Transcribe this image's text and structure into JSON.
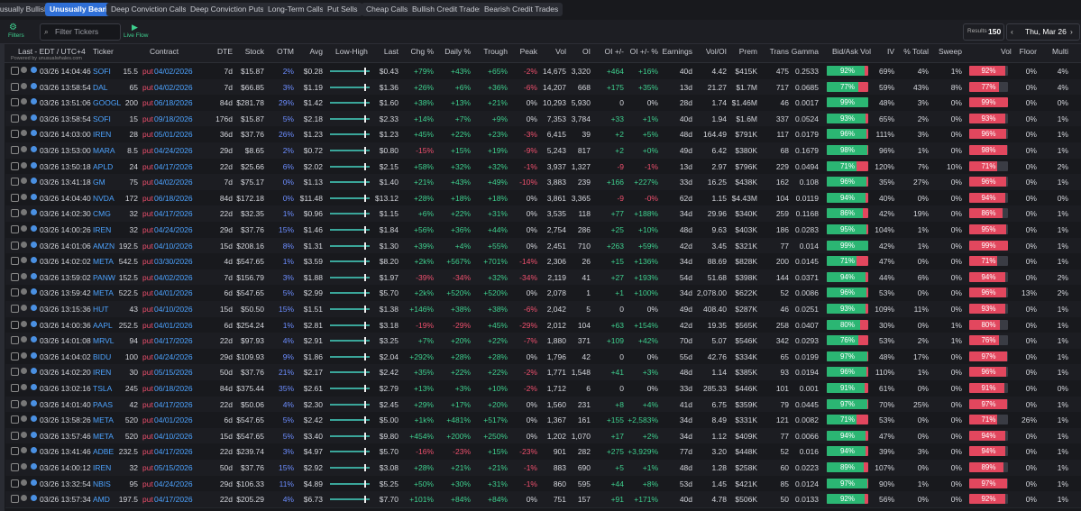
{
  "tabs": [
    "Unusually Bullish",
    "Unusually Bearish",
    "Deep Conviction Calls",
    "Deep Conviction Puts",
    "Long-Term Calls",
    "Put Sells",
    "Cheap Calls",
    "Bullish Credit Trades",
    "Bearish Credit Trades"
  ],
  "toolbar": {
    "filters": "Filters",
    "search_placeholder": "Filter Tickers",
    "live_flow": "Live Flow",
    "results_label": "Results",
    "results_count": "150",
    "date": "Thu, Mar 26"
  },
  "table": {
    "powered_by": "Powered by unusualwhales.com",
    "headers": [
      "Last - EDT / UTC+4",
      "Ticker",
      "Contract",
      "DTE",
      "Stock",
      "OTM",
      "Avg",
      "Low-High",
      "Last",
      "Chg %",
      "Daily %",
      "Trough",
      "Peak",
      "Vol",
      "OI",
      "OI +/-",
      "OI +/- %",
      "Earnings",
      "Vol/OI",
      "Prem",
      "Trans",
      "Gamma",
      "Bid/Ask Vol",
      "IV",
      "% Total",
      "Sweep",
      "Vol",
      "Floor",
      "Multi"
    ],
    "rows": [
      [
        "03/26 14:04:46",
        "SOFI",
        "15.5",
        "put",
        "04/02/2026",
        "7d",
        "$15.87",
        "2%",
        "$0.28",
        "$0.43",
        "+79%",
        "+43%",
        "+65%",
        "-2%",
        "14,675",
        "3,320",
        "+464",
        "+16%",
        "40d",
        "4.42",
        "$415K",
        "475",
        "0.2533",
        "92%",
        "69%",
        "4%",
        "1%",
        "92%",
        "0%",
        "4%"
      ],
      [
        "03/26 13:58:54",
        "DAL",
        "65",
        "put",
        "04/02/2026",
        "7d",
        "$66.85",
        "3%",
        "$1.19",
        "$1.36",
        "+26%",
        "+6%",
        "+36%",
        "-6%",
        "14,207",
        "668",
        "+175",
        "+35%",
        "13d",
        "21.27",
        "$1.7M",
        "717",
        "0.0685",
        "77%",
        "59%",
        "43%",
        "8%",
        "77%",
        "0%",
        "4%"
      ],
      [
        "03/26 13:51:06",
        "GOOGL",
        "200",
        "put",
        "06/18/2026",
        "84d",
        "$281.78",
        "29%",
        "$1.42",
        "$1.60",
        "+38%",
        "+13%",
        "+21%",
        "0%",
        "10,293",
        "5,930",
        "0",
        "0%",
        "28d",
        "1.74",
        "$1.46M",
        "46",
        "0.0017",
        "99%",
        "48%",
        "3%",
        "0%",
        "99%",
        "0%",
        "0%"
      ],
      [
        "03/26 13:58:54",
        "SOFI",
        "15",
        "put",
        "09/18/2026",
        "176d",
        "$15.87",
        "5%",
        "$2.18",
        "$2.33",
        "+14%",
        "+7%",
        "+9%",
        "0%",
        "7,353",
        "3,784",
        "+33",
        "+1%",
        "40d",
        "1.94",
        "$1.6M",
        "337",
        "0.0524",
        "93%",
        "65%",
        "2%",
        "0%",
        "93%",
        "0%",
        "1%"
      ],
      [
        "03/26 14:03:00",
        "IREN",
        "28",
        "put",
        "05/01/2026",
        "36d",
        "$37.76",
        "26%",
        "$1.23",
        "$1.23",
        "+45%",
        "+22%",
        "+23%",
        "-3%",
        "6,415",
        "39",
        "+2",
        "+5%",
        "48d",
        "164.49",
        "$791K",
        "117",
        "0.0179",
        "96%",
        "111%",
        "3%",
        "0%",
        "96%",
        "0%",
        "1%"
      ],
      [
        "03/26 13:53:00",
        "MARA",
        "8.5",
        "put",
        "04/24/2026",
        "29d",
        "$8.65",
        "2%",
        "$0.72",
        "$0.80",
        "-15%",
        "+15%",
        "+19%",
        "-9%",
        "5,243",
        "817",
        "+2",
        "+0%",
        "49d",
        "6.42",
        "$380K",
        "68",
        "0.1679",
        "98%",
        "96%",
        "1%",
        "0%",
        "98%",
        "0%",
        "1%"
      ],
      [
        "03/26 13:50:18",
        "APLD",
        "24",
        "put",
        "04/17/2026",
        "22d",
        "$25.66",
        "6%",
        "$2.02",
        "$2.15",
        "+58%",
        "+32%",
        "+32%",
        "-1%",
        "3,937",
        "1,327",
        "-9",
        "-1%",
        "13d",
        "2.97",
        "$796K",
        "229",
        "0.0494",
        "71%",
        "120%",
        "7%",
        "10%",
        "71%",
        "0%",
        "2%"
      ],
      [
        "03/26 13:41:18",
        "GM",
        "75",
        "put",
        "04/02/2026",
        "7d",
        "$75.17",
        "0%",
        "$1.13",
        "$1.40",
        "+21%",
        "+43%",
        "+49%",
        "-10%",
        "3,883",
        "239",
        "+166",
        "+227%",
        "33d",
        "16.25",
        "$438K",
        "162",
        "0.108",
        "96%",
        "35%",
        "27%",
        "0%",
        "96%",
        "0%",
        "1%"
      ],
      [
        "03/26 14:04:40",
        "NVDA",
        "172",
        "put",
        "06/18/2026",
        "84d",
        "$172.18",
        "0%",
        "$11.48",
        "$13.12",
        "+28%",
        "+18%",
        "+18%",
        "0%",
        "3,861",
        "3,365",
        "-9",
        "-0%",
        "62d",
        "1.15",
        "$4.43M",
        "104",
        "0.0119",
        "94%",
        "40%",
        "0%",
        "0%",
        "94%",
        "0%",
        "0%"
      ],
      [
        "03/26 14:02:30",
        "CMG",
        "32",
        "put",
        "04/17/2026",
        "22d",
        "$32.35",
        "1%",
        "$0.96",
        "$1.15",
        "+6%",
        "+22%",
        "+31%",
        "0%",
        "3,535",
        "118",
        "+77",
        "+188%",
        "34d",
        "29.96",
        "$340K",
        "259",
        "0.1168",
        "86%",
        "42%",
        "19%",
        "0%",
        "86%",
        "0%",
        "1%"
      ],
      [
        "03/26 14:00:26",
        "IREN",
        "32",
        "put",
        "04/24/2026",
        "29d",
        "$37.76",
        "15%",
        "$1.46",
        "$1.84",
        "+56%",
        "+36%",
        "+44%",
        "0%",
        "2,754",
        "286",
        "+25",
        "+10%",
        "48d",
        "9.63",
        "$403K",
        "186",
        "0.0283",
        "95%",
        "104%",
        "1%",
        "0%",
        "95%",
        "0%",
        "1%"
      ],
      [
        "03/26 14:01:06",
        "AMZN",
        "192.5",
        "put",
        "04/10/2026",
        "15d",
        "$208.16",
        "8%",
        "$1.31",
        "$1.30",
        "+39%",
        "+4%",
        "+55%",
        "0%",
        "2,451",
        "710",
        "+263",
        "+59%",
        "42d",
        "3.45",
        "$321K",
        "77",
        "0.014",
        "99%",
        "42%",
        "1%",
        "0%",
        "99%",
        "0%",
        "1%"
      ],
      [
        "03/26 14:02:02",
        "META",
        "542.5",
        "put",
        "03/30/2026",
        "4d",
        "$547.65",
        "1%",
        "$3.59",
        "$8.20",
        "+2k%",
        "+567%",
        "+701%",
        "-14%",
        "2,306",
        "26",
        "+15",
        "+136%",
        "34d",
        "88.69",
        "$828K",
        "200",
        "0.0145",
        "71%",
        "47%",
        "0%",
        "0%",
        "71%",
        "0%",
        "1%"
      ],
      [
        "03/26 13:59:02",
        "PANW",
        "152.5",
        "put",
        "04/02/2026",
        "7d",
        "$156.79",
        "3%",
        "$1.88",
        "$1.97",
        "-39%",
        "-34%",
        "+32%",
        "-34%",
        "2,119",
        "41",
        "+27",
        "+193%",
        "54d",
        "51.68",
        "$398K",
        "144",
        "0.0371",
        "94%",
        "44%",
        "6%",
        "0%",
        "94%",
        "0%",
        "2%"
      ],
      [
        "03/26 13:59:42",
        "META",
        "522.5",
        "put",
        "04/01/2026",
        "6d",
        "$547.65",
        "5%",
        "$2.99",
        "$5.70",
        "+2k%",
        "+520%",
        "+520%",
        "0%",
        "2,078",
        "1",
        "+1",
        "+100%",
        "34d",
        "2,078.00",
        "$622K",
        "52",
        "0.0086",
        "96%",
        "53%",
        "0%",
        "0%",
        "96%",
        "13%",
        "2%"
      ],
      [
        "03/26 13:15:36",
        "HUT",
        "43",
        "put",
        "04/10/2026",
        "15d",
        "$50.50",
        "15%",
        "$1.51",
        "$1.38",
        "+146%",
        "+38%",
        "+38%",
        "-6%",
        "2,042",
        "5",
        "0",
        "0%",
        "49d",
        "408.40",
        "$287K",
        "46",
        "0.0251",
        "93%",
        "109%",
        "11%",
        "0%",
        "93%",
        "0%",
        "1%"
      ],
      [
        "03/26 14:00:36",
        "AAPL",
        "252.5",
        "put",
        "04/01/2026",
        "6d",
        "$254.24",
        "1%",
        "$2.81",
        "$3.18",
        "-19%",
        "-29%",
        "+45%",
        "-29%",
        "2,012",
        "104",
        "+63",
        "+154%",
        "42d",
        "19.35",
        "$565K",
        "258",
        "0.0407",
        "80%",
        "30%",
        "0%",
        "1%",
        "80%",
        "0%",
        "1%"
      ],
      [
        "03/26 14:01:08",
        "MRVL",
        "94",
        "put",
        "04/17/2026",
        "22d",
        "$97.93",
        "4%",
        "$2.91",
        "$3.25",
        "+7%",
        "+20%",
        "+22%",
        "-7%",
        "1,880",
        "371",
        "+109",
        "+42%",
        "70d",
        "5.07",
        "$546K",
        "342",
        "0.0293",
        "76%",
        "53%",
        "2%",
        "1%",
        "76%",
        "0%",
        "1%"
      ],
      [
        "03/26 14:04:02",
        "BIDU",
        "100",
        "put",
        "04/24/2026",
        "29d",
        "$109.93",
        "9%",
        "$1.86",
        "$2.04",
        "+292%",
        "+28%",
        "+28%",
        "0%",
        "1,796",
        "42",
        "0",
        "0%",
        "55d",
        "42.76",
        "$334K",
        "65",
        "0.0199",
        "97%",
        "48%",
        "17%",
        "0%",
        "97%",
        "0%",
        "1%"
      ],
      [
        "03/26 14:02:20",
        "IREN",
        "30",
        "put",
        "05/15/2026",
        "50d",
        "$37.76",
        "21%",
        "$2.17",
        "$2.42",
        "+35%",
        "+22%",
        "+22%",
        "-2%",
        "1,771",
        "1,548",
        "+41",
        "+3%",
        "48d",
        "1.14",
        "$385K",
        "93",
        "0.0194",
        "96%",
        "110%",
        "1%",
        "0%",
        "96%",
        "0%",
        "1%"
      ],
      [
        "03/26 13:02:16",
        "TSLA",
        "245",
        "put",
        "06/18/2026",
        "84d",
        "$375.44",
        "35%",
        "$2.61",
        "$2.79",
        "+13%",
        "+3%",
        "+10%",
        "-2%",
        "1,712",
        "6",
        "0",
        "0%",
        "33d",
        "285.33",
        "$446K",
        "101",
        "0.001",
        "91%",
        "61%",
        "0%",
        "0%",
        "91%",
        "0%",
        "0%"
      ],
      [
        "03/26 14:01:40",
        "PAAS",
        "42",
        "put",
        "04/17/2026",
        "22d",
        "$50.06",
        "4%",
        "$2.30",
        "$2.45",
        "+29%",
        "+17%",
        "+20%",
        "0%",
        "1,560",
        "231",
        "+8",
        "+4%",
        "41d",
        "6.75",
        "$359K",
        "79",
        "0.0445",
        "97%",
        "70%",
        "25%",
        "0%",
        "97%",
        "0%",
        "1%"
      ],
      [
        "03/26 13:58:26",
        "META",
        "520",
        "put",
        "04/01/2026",
        "6d",
        "$547.65",
        "5%",
        "$2.42",
        "$5.00",
        "+1k%",
        "+481%",
        "+517%",
        "0%",
        "1,367",
        "161",
        "+155",
        "+2,583%",
        "34d",
        "8.49",
        "$331K",
        "121",
        "0.0082",
        "71%",
        "53%",
        "0%",
        "0%",
        "71%",
        "26%",
        "1%"
      ],
      [
        "03/26 13:57:46",
        "META",
        "520",
        "put",
        "04/10/2026",
        "15d",
        "$547.65",
        "5%",
        "$3.40",
        "$9.80",
        "+454%",
        "+200%",
        "+250%",
        "0%",
        "1,202",
        "1,070",
        "+17",
        "+2%",
        "34d",
        "1.12",
        "$409K",
        "77",
        "0.0066",
        "94%",
        "47%",
        "0%",
        "0%",
        "94%",
        "0%",
        "1%"
      ],
      [
        "03/26 13:41:46",
        "ADBE",
        "232.5",
        "put",
        "04/17/2026",
        "22d",
        "$239.74",
        "3%",
        "$4.97",
        "$5.70",
        "-16%",
        "-23%",
        "+15%",
        "-23%",
        "901",
        "282",
        "+275",
        "+3,929%",
        "77d",
        "3.20",
        "$448K",
        "52",
        "0.016",
        "94%",
        "39%",
        "3%",
        "0%",
        "94%",
        "0%",
        "1%"
      ],
      [
        "03/26 14:00:12",
        "IREN",
        "32",
        "put",
        "05/15/2026",
        "50d",
        "$37.76",
        "15%",
        "$2.92",
        "$3.08",
        "+28%",
        "+21%",
        "+21%",
        "-1%",
        "883",
        "690",
        "+5",
        "+1%",
        "48d",
        "1.28",
        "$258K",
        "60",
        "0.0223",
        "89%",
        "107%",
        "0%",
        "0%",
        "89%",
        "0%",
        "1%"
      ],
      [
        "03/26 13:32:54",
        "NBIS",
        "95",
        "put",
        "04/24/2026",
        "29d",
        "$106.33",
        "11%",
        "$4.89",
        "$5.25",
        "+50%",
        "+30%",
        "+31%",
        "-1%",
        "860",
        "595",
        "+44",
        "+8%",
        "53d",
        "1.45",
        "$421K",
        "85",
        "0.0124",
        "97%",
        "90%",
        "1%",
        "0%",
        "97%",
        "0%",
        "1%"
      ],
      [
        "03/26 13:57:34",
        "AMD",
        "197.5",
        "put",
        "04/17/2026",
        "22d",
        "$205.29",
        "4%",
        "$6.73",
        "$7.70",
        "+101%",
        "+84%",
        "+84%",
        "0%",
        "751",
        "157",
        "+91",
        "+171%",
        "40d",
        "4.78",
        "$506K",
        "50",
        "0.0133",
        "92%",
        "56%",
        "0%",
        "0%",
        "92%",
        "0%",
        "1%"
      ]
    ]
  }
}
